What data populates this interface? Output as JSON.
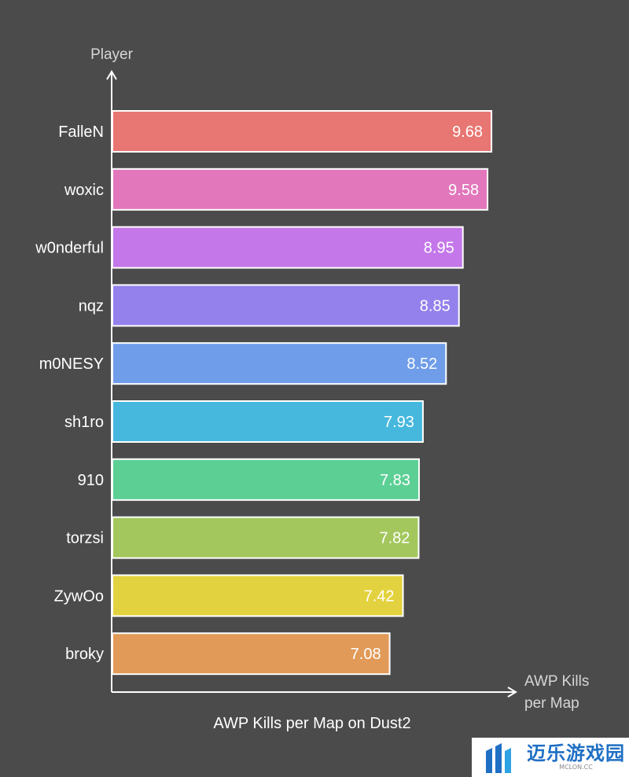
{
  "chart_data": {
    "type": "bar",
    "orientation": "horizontal",
    "title": "AWP Kills per Map on Dust2",
    "xlabel": "AWP Kills per Map",
    "ylabel": "Player",
    "categories": [
      "FalleN",
      "woxic",
      "w0nderful",
      "nqz",
      "m0NESY",
      "sh1ro",
      "910",
      "torzsi",
      "ZywOo",
      "broky"
    ],
    "values": [
      9.68,
      9.58,
      8.95,
      8.85,
      8.52,
      7.93,
      7.83,
      7.82,
      7.42,
      7.08
    ],
    "colors": [
      "#e87672",
      "#e277bb",
      "#c477e9",
      "#9481ec",
      "#6f9de9",
      "#46b8de",
      "#5ccf94",
      "#a3c75d",
      "#e3d23f",
      "#e19a58"
    ],
    "xlim": [
      0,
      10.6
    ],
    "grid": false,
    "legend": "none",
    "value_labels": true
  },
  "watermark": {
    "name": "迈乐游戏园",
    "sub": "MCLON.CC"
  },
  "colors": {
    "background": "#4b4b4b",
    "axis": "#ffffff",
    "bar_outline": "#ffffff"
  }
}
